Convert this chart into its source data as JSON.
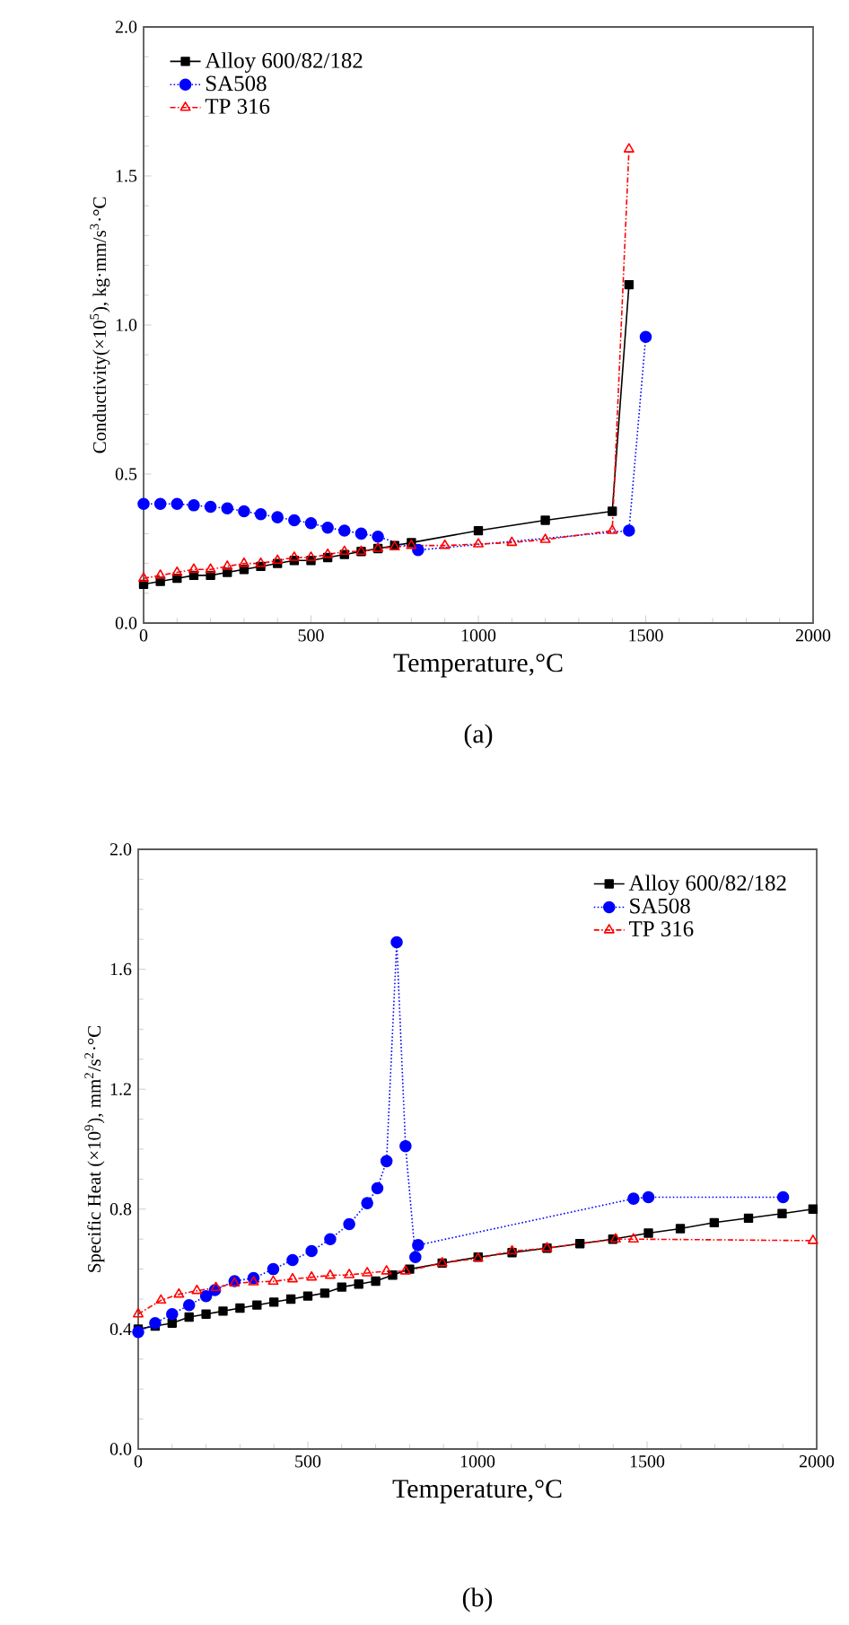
{
  "chart_data": [
    {
      "type": "line",
      "xlabel": "Temperature,°C",
      "ylabel": "Conductivity(×10$^{5}$), kg·mm/s$^{3}$·°C",
      "xlim": [
        0,
        2000
      ],
      "ylim": [
        0,
        2.0
      ],
      "xticks": [
        0,
        500,
        1000,
        1500,
        2000
      ],
      "yticks": [
        {
          "value": 0,
          "label": "0.0"
        },
        0.5,
        {
          "value": 1,
          "label": "1.0"
        },
        1.5,
        {
          "value": 2,
          "label": "2.0"
        }
      ],
      "legend": "top left",
      "grid": false,
      "annotations": [
        "(a)"
      ],
      "series": [
        {
          "name": "Alloy 600/82/182",
          "color": "#000000",
          "marker": "square",
          "line_style": "solid",
          "x": [
            0,
            50,
            100,
            150,
            200,
            250,
            300,
            350,
            400,
            450,
            500,
            550,
            600,
            650,
            700,
            750,
            800,
            1000,
            1200,
            1400,
            1450
          ],
          "values": [
            0.13,
            0.14,
            0.15,
            0.16,
            0.16,
            0.17,
            0.18,
            0.19,
            0.2,
            0.21,
            0.21,
            0.22,
            0.23,
            0.24,
            0.25,
            0.26,
            0.27,
            0.31,
            0.345,
            0.375,
            1.135
          ]
        },
        {
          "name": "SA508",
          "color": "#0000ff",
          "marker": "circle",
          "line_style": "dotted",
          "x": [
            0,
            50,
            100,
            150,
            200,
            250,
            300,
            350,
            400,
            450,
            500,
            550,
            600,
            650,
            700,
            820,
            1450,
            1500
          ],
          "values": [
            0.4,
            0.4,
            0.4,
            0.395,
            0.39,
            0.385,
            0.375,
            0.365,
            0.355,
            0.345,
            0.335,
            0.32,
            0.31,
            0.3,
            0.29,
            0.245,
            0.31,
            0.96
          ]
        },
        {
          "name": "TP 316",
          "color": "#ff0000",
          "marker": "triangle",
          "line_style": "dashed",
          "x": [
            0,
            50,
            100,
            150,
            200,
            250,
            300,
            350,
            400,
            450,
            500,
            550,
            600,
            650,
            700,
            750,
            800,
            900,
            1000,
            1100,
            1200,
            1400,
            1450
          ],
          "values": [
            0.15,
            0.16,
            0.17,
            0.18,
            0.18,
            0.19,
            0.2,
            0.2,
            0.21,
            0.22,
            0.22,
            0.23,
            0.24,
            0.24,
            0.25,
            0.255,
            0.26,
            0.26,
            0.265,
            0.27,
            0.28,
            0.31,
            1.59
          ]
        }
      ]
    },
    {
      "type": "line",
      "xlabel": "Temperature,°C",
      "ylabel": "Specific Heat (×10$^{9}$), mm$^{2}$/s$^{2}$·°C",
      "xlim": [
        0,
        2000
      ],
      "ylim": [
        0,
        2.0
      ],
      "xticks": [
        0,
        500,
        1000,
        1500,
        2000
      ],
      "yticks": [
        {
          "value": 0,
          "label": "0.0"
        },
        0.4,
        0.8,
        1.2,
        1.6,
        {
          "value": 2,
          "label": "2.0"
        }
      ],
      "legend": "top right",
      "grid": false,
      "annotations": [
        "(b)"
      ],
      "series": [
        {
          "name": "Alloy 600/82/182",
          "color": "#000000",
          "marker": "square",
          "line_style": "solid",
          "x": [
            0,
            50,
            100,
            150,
            200,
            250,
            300,
            350,
            400,
            450,
            500,
            550,
            600,
            650,
            700,
            750,
            800,
            896,
            1002,
            1102,
            1205,
            1302,
            1399,
            1504,
            1598,
            1698,
            1799,
            1898,
            1989
          ],
          "values": [
            0.4,
            0.41,
            0.42,
            0.44,
            0.45,
            0.46,
            0.47,
            0.48,
            0.49,
            0.5,
            0.51,
            0.52,
            0.54,
            0.55,
            0.56,
            0.58,
            0.6,
            0.62,
            0.64,
            0.655,
            0.67,
            0.685,
            0.7,
            0.72,
            0.735,
            0.755,
            0.77,
            0.785,
            0.8
          ]
        },
        {
          "name": "SA508",
          "color": "#0000ff",
          "marker": "circle",
          "line_style": "dotted",
          "x": [
            0,
            50,
            100,
            150,
            200,
            226,
            284,
            340,
            398,
            455,
            511,
            566,
            622,
            675,
            705,
            732,
            762,
            788,
            817,
            825,
            1460,
            1504,
            1901
          ],
          "values": [
            0.39,
            0.42,
            0.45,
            0.48,
            0.51,
            0.53,
            0.56,
            0.57,
            0.6,
            0.63,
            0.66,
            0.7,
            0.75,
            0.82,
            0.87,
            0.96,
            1.69,
            1.01,
            0.64,
            0.68,
            0.835,
            0.84,
            0.84
          ]
        },
        {
          "name": "TP 316",
          "color": "#ff0000",
          "marker": "triangle",
          "line_style": "dashed",
          "x": [
            0,
            67,
            120,
            173,
            229,
            284,
            340,
            398,
            455,
            511,
            566,
            622,
            675,
            732,
            788,
            896,
            1002,
            1102,
            1205,
            1407,
            1460,
            1989
          ],
          "values": [
            0.45,
            0.496,
            0.516,
            0.528,
            0.538,
            0.553,
            0.557,
            0.559,
            0.567,
            0.573,
            0.579,
            0.581,
            0.587,
            0.593,
            0.593,
            0.62,
            0.636,
            0.66,
            0.67,
            0.7,
            0.7,
            0.695
          ]
        }
      ]
    }
  ]
}
